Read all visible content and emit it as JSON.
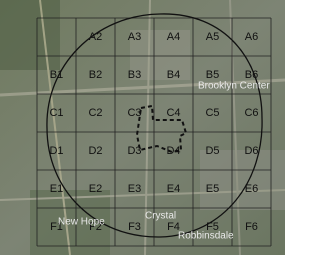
{
  "map": {
    "grid": {
      "rows": [
        [
          null,
          "A2",
          "A3",
          "A4",
          "A5",
          "A6"
        ],
        [
          "B1",
          "B2",
          "B3",
          "B4",
          "B5",
          "B6"
        ],
        [
          "C1",
          "C2",
          "C3",
          "C4",
          "C5",
          "C6"
        ],
        [
          "D1",
          "D2",
          "D3",
          "D4",
          "D5",
          "D6"
        ],
        [
          "E1",
          "E2",
          "E3",
          "E4",
          "E5",
          "E6"
        ],
        [
          "F1",
          "F2",
          "F3",
          "F4",
          "F5",
          "F6"
        ]
      ]
    },
    "places": [
      "Brooklyn Center",
      "New Hope",
      "Crystal",
      "Robbinsdale"
    ]
  }
}
